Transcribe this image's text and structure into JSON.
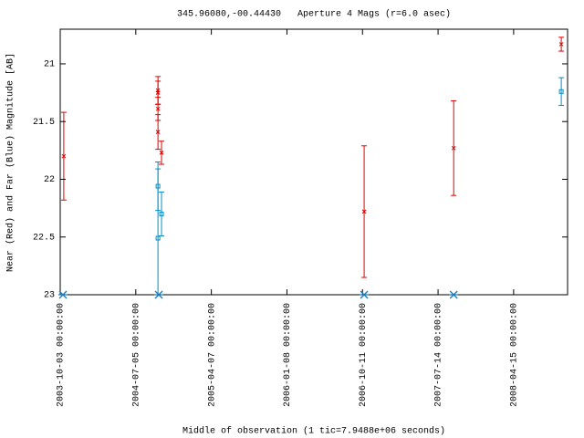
{
  "chart_data": {
    "type": "errorbar",
    "title": "345.96080,-00.44430   Aperture 4 Mags (r=6.0 asec)",
    "x_label": "Middle of observation (1 tic=7.9488e+06 seconds)",
    "y_label": "Near (Red) and Far (Blue) Magnitude [AB]",
    "xlim": [
      "2003-10-03",
      "2008-10-29"
    ],
    "xticks": [
      {
        "value": "2003-10-03",
        "label": "2003-10-03 00:00:00"
      },
      {
        "value": "2004-07-05",
        "label": "2004-07-05 00:00:00"
      },
      {
        "value": "2005-04-07",
        "label": "2005-04-07 00:00:00"
      },
      {
        "value": "2006-01-08",
        "label": "2006-01-08 00:00:00"
      },
      {
        "value": "2006-10-11",
        "label": "2006-10-11 00:00:00"
      },
      {
        "value": "2007-07-14",
        "label": "2007-07-14 00:00:00"
      },
      {
        "value": "2008-04-15",
        "label": "2008-04-15 00:00:00"
      }
    ],
    "ylim": [
      23,
      20.7
    ],
    "yticks": [
      21,
      21.5,
      22,
      22.5,
      23
    ],
    "series": [
      {
        "color": "#e00000",
        "marker": "x",
        "x": [
          "2003-10-16",
          "2004-09-24",
          "2004-09-24",
          "2004-09-24",
          "2004-09-24",
          "2004-10-07",
          "2006-10-17",
          "2007-09-09",
          "2008-10-06"
        ],
        "values": [
          21.8,
          21.23,
          21.25,
          21.39,
          21.59,
          21.77,
          22.28,
          21.73,
          20.83
        ],
        "errors": [
          0.38,
          0.12,
          0.1,
          0.1,
          0.15,
          0.1,
          0.57,
          0.41,
          0.06
        ]
      },
      {
        "color": "#0090c8",
        "marker": "square",
        "x": [
          "2004-09-24",
          "2004-09-24",
          "2004-10-07",
          "2008-10-06"
        ],
        "values": [
          22.06,
          22.51,
          22.3,
          21.24
        ],
        "errors": [
          0.21,
          0.6,
          0.19,
          0.12
        ]
      },
      {
        "color": "#1a7ab8",
        "marker": "asterisk",
        "x": [
          "2003-10-13",
          "2004-09-27",
          "2006-10-17",
          "2007-09-09"
        ],
        "values": [
          23,
          23,
          23,
          23
        ]
      }
    ]
  }
}
